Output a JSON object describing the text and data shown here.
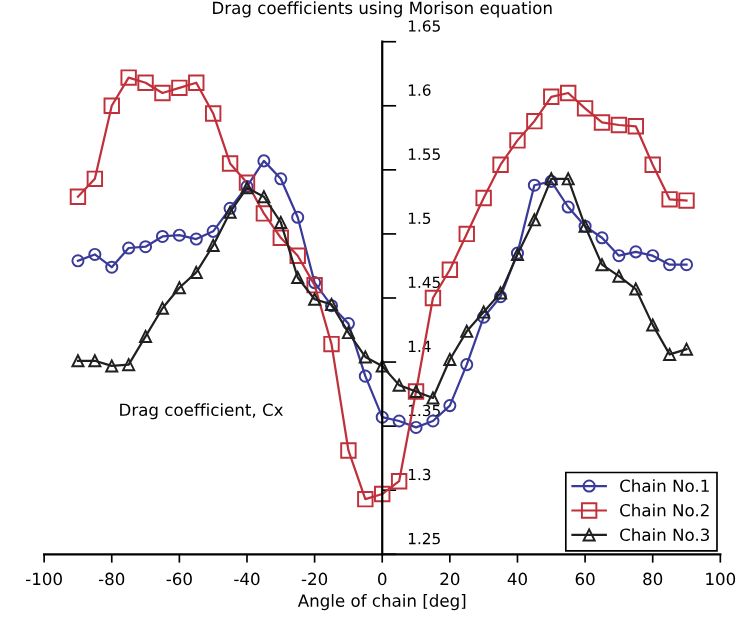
{
  "chart_data": {
    "type": "line",
    "title": "Drag coefficients using Morison equation",
    "xlabel": "Angle of chain [deg]",
    "ylabel": "Drag coefficient, Cx",
    "x": [
      -90,
      -85,
      -80,
      -75,
      -70,
      -65,
      -60,
      -55,
      -50,
      -45,
      -40,
      -35,
      -30,
      -25,
      -20,
      -15,
      -10,
      -5,
      0,
      5,
      10,
      15,
      20,
      25,
      30,
      35,
      40,
      45,
      50,
      55,
      60,
      65,
      70,
      75,
      80,
      85,
      90
    ],
    "series": [
      {
        "name": "Chain No.1",
        "color": "#3a3a9a",
        "marker": "circle",
        "values": [
          1.479,
          1.484,
          1.474,
          1.489,
          1.49,
          1.498,
          1.499,
          1.496,
          1.502,
          1.52,
          1.537,
          1.557,
          1.543,
          1.513,
          1.462,
          1.444,
          1.43,
          1.389,
          1.357,
          1.354,
          1.349,
          1.354,
          1.366,
          1.398,
          1.435,
          1.451,
          1.485,
          1.538,
          1.541,
          1.521,
          1.506,
          1.497,
          1.483,
          1.486,
          1.483,
          1.476,
          1.476
        ]
      },
      {
        "name": "Chain No.2",
        "color": "#c0303a",
        "marker": "square",
        "values": [
          1.529,
          1.543,
          1.6,
          1.622,
          1.618,
          1.61,
          1.614,
          1.618,
          1.594,
          1.555,
          1.54,
          1.516,
          1.497,
          1.483,
          1.46,
          1.414,
          1.331,
          1.293,
          1.297,
          1.307,
          1.377,
          1.45,
          1.472,
          1.5,
          1.528,
          1.554,
          1.573,
          1.588,
          1.607,
          1.61,
          1.598,
          1.587,
          1.585,
          1.584,
          1.554,
          1.527,
          1.526
        ]
      },
      {
        "name": "Chain No.3",
        "color": "#202020",
        "marker": "triangle",
        "values": [
          1.401,
          1.401,
          1.397,
          1.398,
          1.42,
          1.442,
          1.458,
          1.47,
          1.491,
          1.517,
          1.536,
          1.529,
          1.509,
          1.466,
          1.449,
          1.445,
          1.423,
          1.404,
          1.397,
          1.382,
          1.377,
          1.372,
          1.402,
          1.424,
          1.439,
          1.454,
          1.484,
          1.511,
          1.543,
          1.543,
          1.506,
          1.476,
          1.467,
          1.457,
          1.429,
          1.406,
          1.41
        ]
      }
    ],
    "xlim": [
      -100,
      100
    ],
    "ylim": [
      1.25,
      1.65
    ],
    "xticks": [
      -100,
      -80,
      -60,
      -40,
      -20,
      0,
      20,
      40,
      60,
      80,
      100
    ],
    "yticks": [
      1.25,
      1.3,
      1.35,
      1.4,
      1.45,
      1.5,
      1.55,
      1.6,
      1.65
    ],
    "grid": false,
    "legend": "bottom right",
    "line_style": "solid"
  }
}
